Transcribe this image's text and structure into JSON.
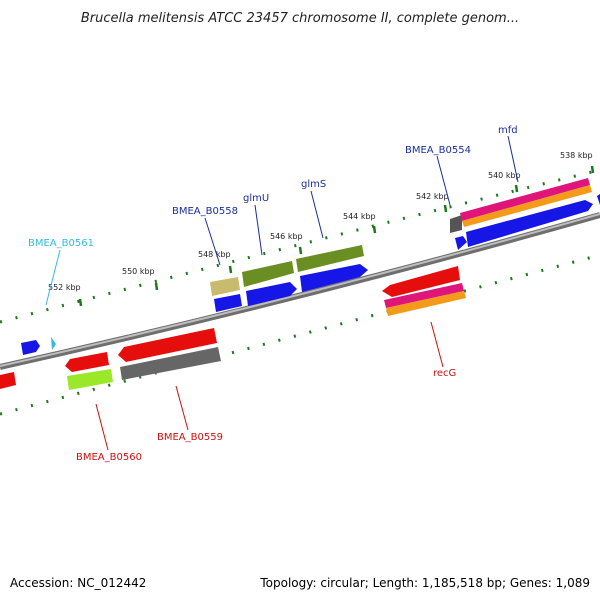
{
  "title": "Brucella melitensis ATCC 23457 chromosome II, complete genom...",
  "footer": {
    "accession": "Accession: NC_012442",
    "summary": "Topology: circular; Length: 1,185,518 bp; Genes: 1,089"
  },
  "colors": {
    "backbone": "#8c8c8c",
    "tick": "#1a7a1a",
    "label_blue": "#1a2f9c",
    "label_cyan": "#33bbdd",
    "label_red": "#cc1111"
  },
  "ticks": [
    {
      "label": "538 kbp"
    },
    {
      "label": "540 kbp"
    },
    {
      "label": "542 kbp"
    },
    {
      "label": "544 kbp"
    },
    {
      "label": "546 kbp"
    },
    {
      "label": "548 kbp"
    },
    {
      "label": "550 kbp"
    },
    {
      "label": "552 kbp"
    }
  ],
  "gene_labels": [
    {
      "text": "BMEA_B0554",
      "color": "label_blue"
    },
    {
      "text": "mfd",
      "color": "label_blue"
    },
    {
      "text": "BMEA_B0558",
      "color": "label_blue"
    },
    {
      "text": "glmU",
      "color": "label_blue"
    },
    {
      "text": "glmS",
      "color": "label_blue"
    },
    {
      "text": "BMEA_B0561",
      "color": "label_cyan"
    },
    {
      "text": "recG",
      "color": "label_red"
    },
    {
      "text": "BMEA_B0560",
      "color": "label_red"
    },
    {
      "text": "BMEA_B0559",
      "color": "label_red"
    }
  ]
}
